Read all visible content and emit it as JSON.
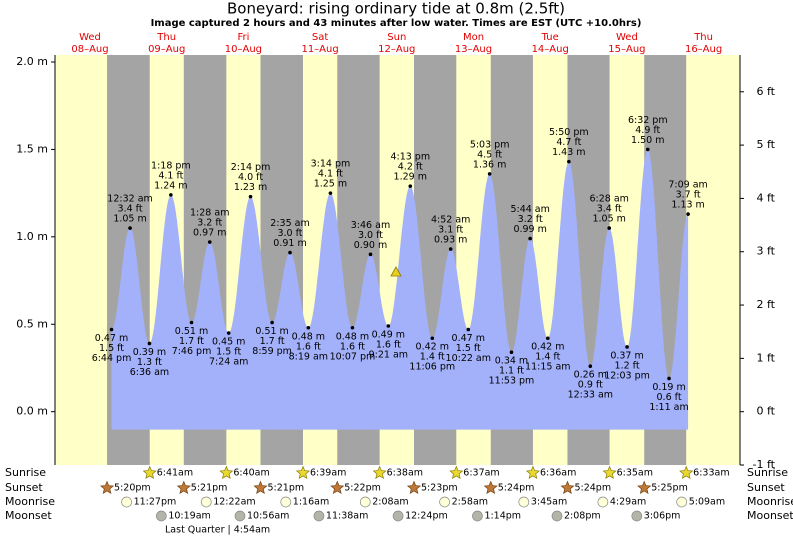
{
  "chart_data": {
    "type": "tide",
    "title": "Boneyard: rising  ordinary tide at 0.8m (2.5ft)",
    "subtitle": "Image captured 2 hours and 43 minutes after low water. Times are EST (UTC +10.0hrs)",
    "days": [
      {
        "weekday": "Wed",
        "date": "08–Aug"
      },
      {
        "weekday": "Thu",
        "date": "09–Aug"
      },
      {
        "weekday": "Fri",
        "date": "10–Aug"
      },
      {
        "weekday": "Sat",
        "date": "11–Aug"
      },
      {
        "weekday": "Sun",
        "date": "12–Aug"
      },
      {
        "weekday": "Mon",
        "date": "13–Aug"
      },
      {
        "weekday": "Tue",
        "date": "14–Aug"
      },
      {
        "weekday": "Wed",
        "date": "15–Aug"
      },
      {
        "weekday": "Thu",
        "date": "16–Aug"
      }
    ],
    "extremes": [
      {
        "time": "6:44 pm",
        "ft": "1.5 ft",
        "m": 0.47,
        "m_label": "0.47 m"
      },
      {
        "time": "12:32 am",
        "ft": "3.4 ft",
        "m": 1.05,
        "m_label": "1.05 m"
      },
      {
        "time": "6:36 am",
        "ft": "1.3 ft",
        "m": 0.39,
        "m_label": "0.39 m"
      },
      {
        "time": "1:18 pm",
        "ft": "4.1 ft",
        "m": 1.24,
        "m_label": "1.24 m"
      },
      {
        "time": "7:46 pm",
        "ft": "1.7 ft",
        "m": 0.51,
        "m_label": "0.51 m"
      },
      {
        "time": "1:28 am",
        "ft": "3.2 ft",
        "m": 0.97,
        "m_label": "0.97 m"
      },
      {
        "time": "7:24 am",
        "ft": "1.5 ft",
        "m": 0.45,
        "m_label": "0.45 m"
      },
      {
        "time": "2:14 pm",
        "ft": "4.0 ft",
        "m": 1.23,
        "m_label": "1.23 m"
      },
      {
        "time": "8:59 pm",
        "ft": "1.7 ft",
        "m": 0.51,
        "m_label": "0.51 m"
      },
      {
        "time": "2:35 am",
        "ft": "3.0 ft",
        "m": 0.91,
        "m_label": "0.91 m"
      },
      {
        "time": "8:19 am",
        "ft": "1.6 ft",
        "m": 0.48,
        "m_label": "0.48 m"
      },
      {
        "time": "3:14 pm",
        "ft": "4.1 ft",
        "m": 1.25,
        "m_label": "1.25 m"
      },
      {
        "time": "10:07 pm",
        "ft": "1.6 ft",
        "m": 0.48,
        "m_label": "0.48 m"
      },
      {
        "time": "3:46 am",
        "ft": "3.0 ft",
        "m": 0.9,
        "m_label": "0.90 m"
      },
      {
        "time": "9:21 am",
        "ft": "1.6 ft",
        "m": 0.49,
        "m_label": "0.49 m"
      },
      {
        "time": "4:13 pm",
        "ft": "4.2 ft",
        "m": 1.29,
        "m_label": "1.29 m"
      },
      {
        "time": "11:06 pm",
        "ft": "1.4 ft",
        "m": 0.42,
        "m_label": "0.42 m"
      },
      {
        "time": "4:52 am",
        "ft": "3.1 ft",
        "m": 0.93,
        "m_label": "0.93 m"
      },
      {
        "time": "10:22 am",
        "ft": "1.5 ft",
        "m": 0.47,
        "m_label": "0.47 m"
      },
      {
        "time": "5:03 pm",
        "ft": "4.5 ft",
        "m": 1.36,
        "m_label": "1.36 m"
      },
      {
        "time": "11:53 pm",
        "ft": "1.1 ft",
        "m": 0.34,
        "m_label": "0.34 m"
      },
      {
        "time": "5:44 am",
        "ft": "3.2 ft",
        "m": 0.99,
        "m_label": "0.99 m"
      },
      {
        "time": "11:15 am",
        "ft": "1.4 ft",
        "m": 0.42,
        "m_label": "0.42 m"
      },
      {
        "time": "5:50 pm",
        "ft": "4.7 ft",
        "m": 1.43,
        "m_label": "1.43 m"
      },
      {
        "time": "12:33 am",
        "ft": "0.9 ft",
        "m": 0.26,
        "m_label": "0.26 m"
      },
      {
        "time": "6:28 am",
        "ft": "3.4 ft",
        "m": 1.05,
        "m_label": "1.05 m"
      },
      {
        "time": "12:03 pm",
        "ft": "1.2 ft",
        "m": 0.37,
        "m_label": "0.37 m"
      },
      {
        "time": "6:32 pm",
        "ft": "4.9 ft",
        "m": 1.5,
        "m_label": "1.50 m"
      },
      {
        "time": "1:11 am",
        "ft": "0.6 ft",
        "m": 0.19,
        "m_label": "0.19 m"
      },
      {
        "time": "7:09 am",
        "ft": "3.7 ft",
        "m": 1.13,
        "m_label": "1.13 m"
      }
    ],
    "ylim": [
      -0.305,
      2.04
    ],
    "yticks": [
      {
        "value": 0,
        "label": "0.0 m"
      },
      {
        "value": 0.5,
        "label": "0.5 m"
      },
      {
        "value": 1,
        "label": "1.0 m"
      },
      {
        "value": 1.5,
        "label": "1.5 m"
      },
      {
        "value": 2,
        "label": "2.0 m"
      }
    ],
    "y2lim": [
      -1,
      6.69
    ],
    "y2ticks": [
      {
        "value": -1,
        "label": "-1 ft"
      },
      {
        "value": 0,
        "label": "0 ft"
      },
      {
        "value": 1,
        "label": "1 ft"
      },
      {
        "value": 2,
        "label": "2 ft"
      },
      {
        "value": 3,
        "label": "3 ft"
      },
      {
        "value": 4,
        "label": "4 ft"
      },
      {
        "value": 5,
        "label": "5 ft"
      },
      {
        "value": 6,
        "label": "6 ft"
      }
    ],
    "sun_moon": [
      {
        "name": "Sunrise",
        "times": [
          "6:41am",
          "6:40am",
          "6:39am",
          "6:38am",
          "6:37am",
          "6:36am",
          "6:35am",
          "6:33am"
        ]
      },
      {
        "name": "Sunset",
        "times": [
          "5:20pm",
          "5:21pm",
          "5:21pm",
          "5:22pm",
          "5:23pm",
          "5:24pm",
          "5:24pm",
          "5:25pm"
        ]
      },
      {
        "name": "Moonrise",
        "times": [
          "11:27pm",
          "12:22am",
          "1:16am",
          "2:08am",
          "2:58am",
          "3:45am",
          "4:29am",
          "5:09am"
        ]
      },
      {
        "name": "Moonset",
        "times": [
          "10:19am",
          "10:56am",
          "11:38am",
          "12:24pm",
          "1:14pm",
          "2:08pm",
          "3:06pm"
        ]
      }
    ],
    "moon_phase": "Last Quarter | 4:54am"
  }
}
